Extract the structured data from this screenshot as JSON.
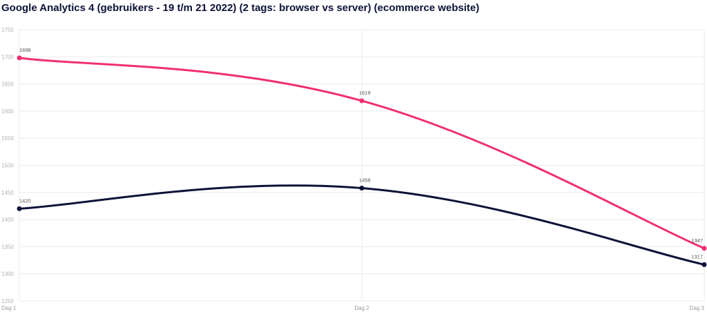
{
  "title": "Google Analytics 4 (gebruikers - 19 t/m 21 2022) (2 tags: browser vs server)  (ecommerce website)",
  "chart_data": {
    "type": "line",
    "title": "Google Analytics 4 (gebruikers - 19 t/m 21 2022) (2 tags: browser vs server)  (ecommerce website)",
    "categories": [
      "Dag 1",
      "Dag 2",
      "Dag 3"
    ],
    "series": [
      {
        "color": "#f0306e",
        "values": [
          1698,
          1619,
          1347
        ]
      },
      {
        "color": "#0d1238",
        "values": [
          1420,
          1458,
          1317
        ]
      }
    ],
    "ylim": [
      1250,
      1750
    ],
    "yticks": [
      1250,
      1300,
      1350,
      1400,
      1450,
      1500,
      1550,
      1600,
      1650,
      1700,
      1750
    ],
    "grid": true,
    "legend": "none",
    "data_labels": true,
    "smooth": true
  }
}
